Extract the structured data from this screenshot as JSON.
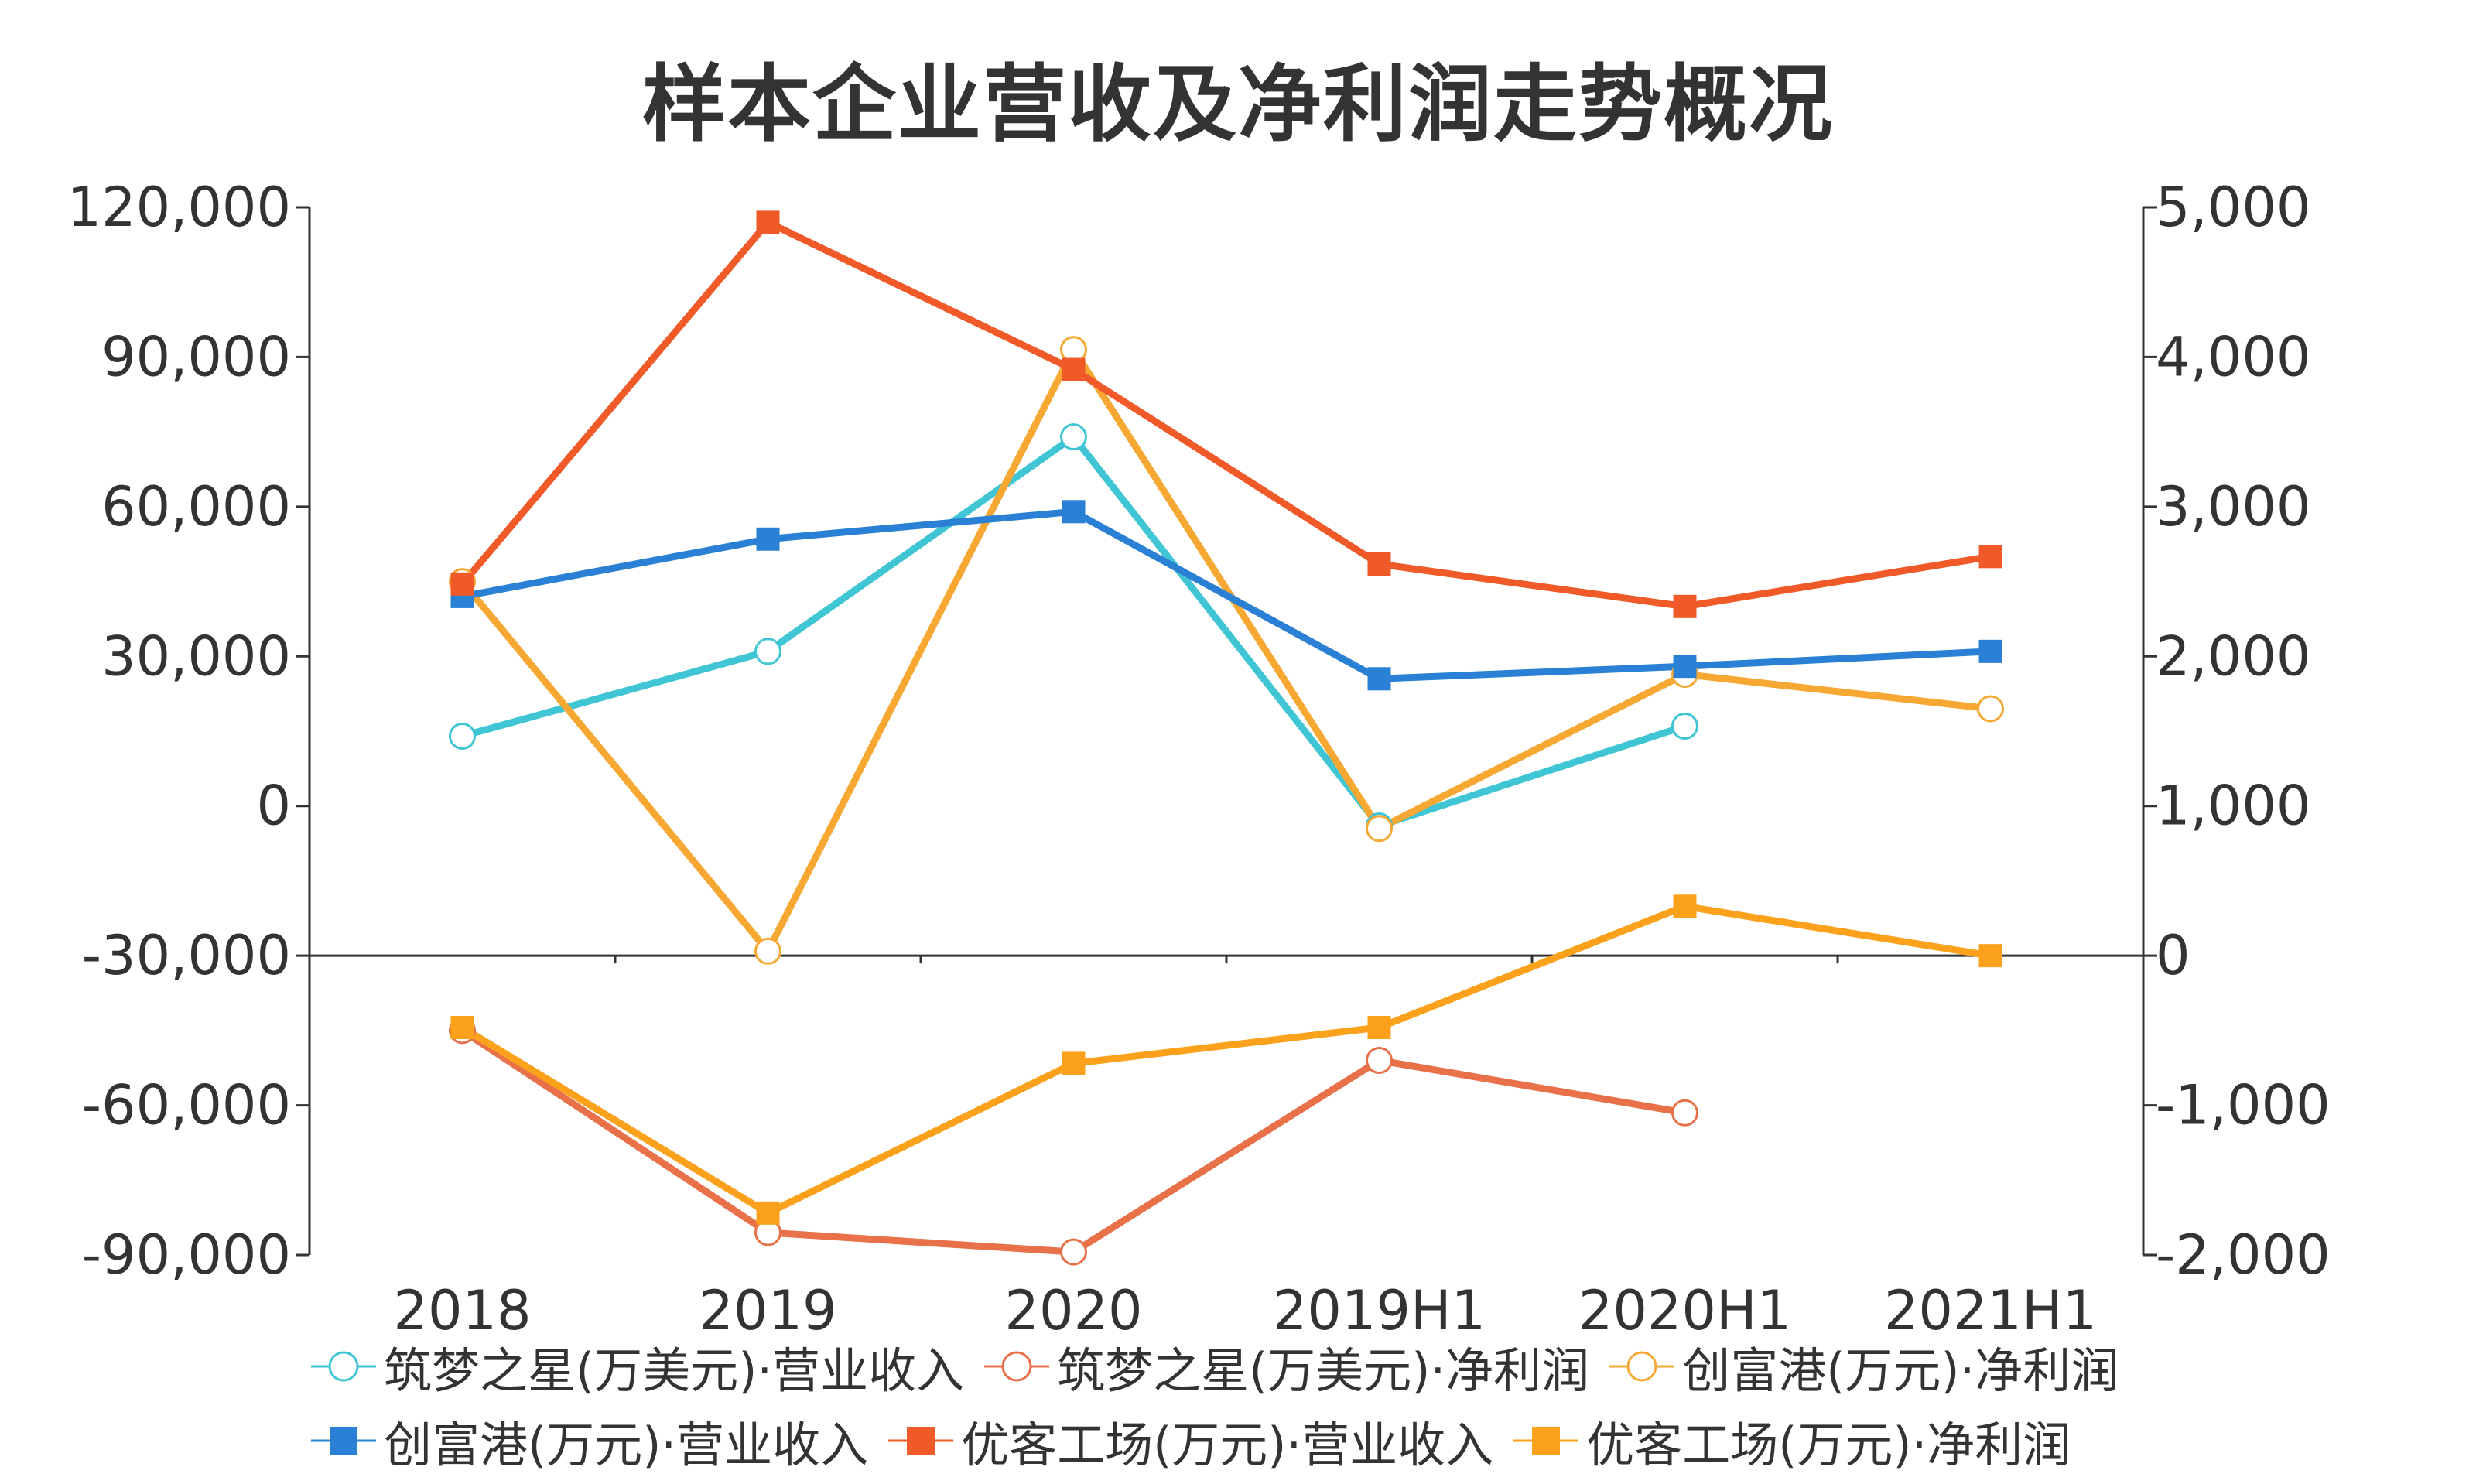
{
  "chart_data": {
    "type": "line",
    "title": "样本企业营收及净利润走势概况",
    "categories": [
      "2018",
      "2019",
      "2020",
      "2019H1",
      "2020H1",
      "2021H1"
    ],
    "y_left": {
      "ylim": [
        -90000,
        120000
      ],
      "ticks": [
        "120,000",
        "90,000",
        "60,000",
        "30,000",
        "0",
        "-30,000",
        "-60,000",
        "-90,000"
      ]
    },
    "y_right": {
      "ylim": [
        -2000,
        5000
      ],
      "ticks": [
        "5,000",
        "4,000",
        "3,000",
        "2,000",
        "1,000",
        "0",
        "-1,000",
        "-2,000"
      ]
    },
    "series": [
      {
        "name": "筑梦之星(万美元)·营业收入",
        "axis": "left",
        "marker": "circle-open",
        "color": "#3fc5d4",
        "values": [
          14000,
          31000,
          74000,
          -4000,
          16000,
          null
        ]
      },
      {
        "name": "筑梦之星(万美元)·净利润",
        "axis": "right",
        "marker": "circle-open",
        "color": "#e8714a",
        "values": [
          -500,
          -1850,
          -1980,
          -700,
          -1050,
          null
        ]
      },
      {
        "name": "创富港(万元)·净利润",
        "axis": "right",
        "marker": "circle-open",
        "color": "#f6a833",
        "values": [
          2500,
          30,
          4050,
          850,
          1880,
          1650
        ]
      },
      {
        "name": "创富港(万元)·营业收入",
        "axis": "left",
        "marker": "square",
        "color": "#2980d4",
        "values": [
          42000,
          53500,
          59000,
          25500,
          28000,
          31000
        ]
      },
      {
        "name": "优客工场(万元)·营业收入",
        "axis": "left",
        "marker": "square",
        "color": "#f05a28",
        "values": [
          44500,
          117000,
          87500,
          48500,
          40000,
          50000
        ]
      },
      {
        "name": "优客工场(万元)·净利润",
        "axis": "right",
        "marker": "square",
        "color": "#fba11b",
        "values": [
          -480,
          -1720,
          -720,
          -480,
          330,
          0
        ]
      }
    ],
    "legend_position": "bottom",
    "grid": false
  }
}
